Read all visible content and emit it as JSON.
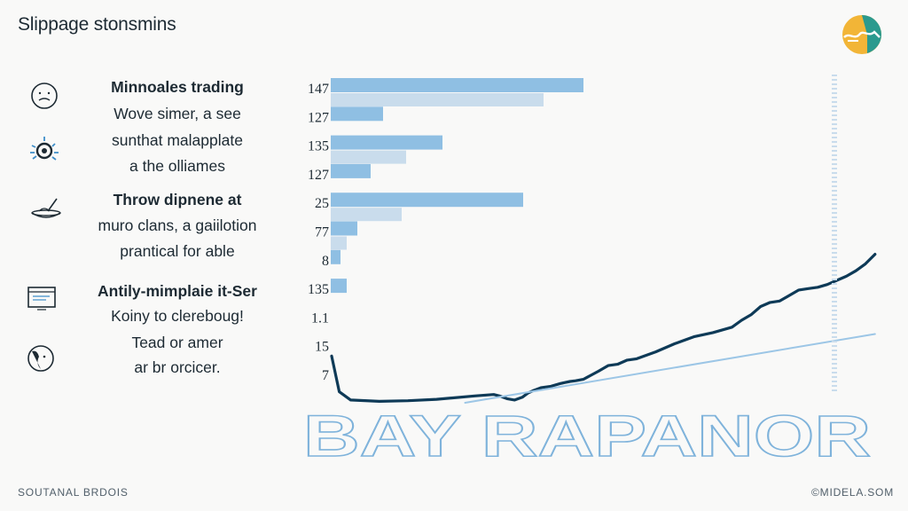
{
  "page": {
    "title": "Slippage stonsmins",
    "footer_left": "SOUTANAL BRDOIS",
    "footer_right": "©MIDELA.SOM"
  },
  "tips": [
    {
      "icon": "face-icon",
      "heading": "Minnoales trading",
      "lines": [
        "Wove simer, a see",
        "sunthat malapplate",
        "a the olliames"
      ]
    },
    {
      "icon": "gear-burst-icon",
      "heading": "",
      "lines": []
    },
    {
      "icon": "wok-icon",
      "heading": "Throw dipnene at",
      "lines": [
        "muro clans, a gaiilotion",
        "prantical for able"
      ]
    },
    {
      "icon": "window-icon",
      "heading": "Antily-mimplaie it-Ser",
      "lines": [
        "Koiny to clereboug!",
        "Tead or amer",
        "ar br orcicer."
      ]
    },
    {
      "icon": "head-profile-icon",
      "heading": "",
      "lines": []
    }
  ],
  "chart_data": {
    "type": "bar",
    "orientation": "horizontal",
    "categories": [
      "147",
      "127",
      "135",
      "127",
      "25",
      "77",
      "8",
      "135",
      "1.1",
      "15",
      "7"
    ],
    "series": [
      {
        "values": [
          285,
          59,
          126,
          45,
          217,
          30,
          11,
          18,
          0,
          0,
          0
        ]
      },
      {
        "values": [
          240,
          0,
          85,
          0,
          80,
          18,
          0,
          0,
          0,
          0,
          0
        ]
      }
    ],
    "overlay_lines": [
      {
        "style": "curve",
        "x": [
          0,
          4,
          10,
          25,
          40,
          55,
          75,
          85,
          88,
          92,
          96,
          100,
          103,
          106,
          110,
          115,
          120,
          125,
          128,
          132,
          134,
          136,
          140,
          145,
          150,
          155,
          160,
          170,
          180,
          190,
          200,
          210,
          215,
          220,
          225,
          230,
          235,
          240,
          245,
          250,
          255,
          260,
          265,
          270,
          275,
          280,
          285
        ],
        "y": [
          34,
          8,
          2,
          1,
          1.5,
          2.5,
          5,
          6,
          5,
          3,
          2,
          4,
          7,
          9,
          11,
          12,
          14,
          15.5,
          16,
          17,
          18.5,
          20,
          23,
          27,
          28,
          31,
          32,
          37,
          43,
          48,
          51,
          55,
          60,
          64,
          70,
          73,
          74,
          78,
          82,
          83,
          84,
          86,
          89,
          92,
          96,
          101,
          108
        ]
      },
      {
        "style": "straight",
        "x": [
          70,
          285
        ],
        "y": [
          0,
          50
        ]
      }
    ],
    "watermark": "BAY RAPANOR",
    "colors": {
      "bar_primary": "#8fbfe3",
      "bar_secondary": "#c9dcec",
      "curve": "#0e3a57",
      "trend": "#9cc6e6"
    }
  }
}
